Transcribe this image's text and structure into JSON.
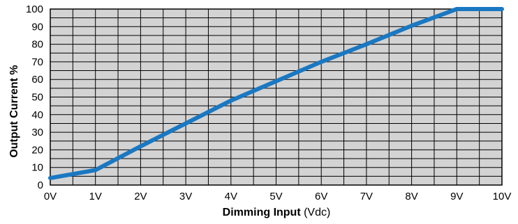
{
  "chart_data": {
    "type": "line",
    "title": "",
    "xlabel_bold": "Dimming Input",
    "xlabel_unit": " (Vdc)",
    "ylabel": "Output Current %",
    "x_ticks": [
      "0V",
      "1V",
      "2V",
      "3V",
      "4V",
      "5V",
      "6V",
      "7V",
      "8V",
      "9V",
      "10V"
    ],
    "y_ticks": [
      "0",
      "10",
      "20",
      "30",
      "40",
      "50",
      "60",
      "70",
      "80",
      "90",
      "100"
    ],
    "xlim": [
      0,
      10
    ],
    "ylim": [
      0,
      100
    ],
    "grid": true,
    "series": [
      {
        "x": [
          0,
          1,
          2,
          3,
          4,
          5,
          6,
          7,
          8,
          9,
          10
        ],
        "y": [
          4,
          8.5,
          22,
          35,
          48,
          59,
          70,
          80,
          90.5,
          100,
          100
        ]
      }
    ]
  },
  "colors": {
    "plot_background": "#d3d3d3",
    "grid": "#000000",
    "line": "#1a78c2"
  }
}
